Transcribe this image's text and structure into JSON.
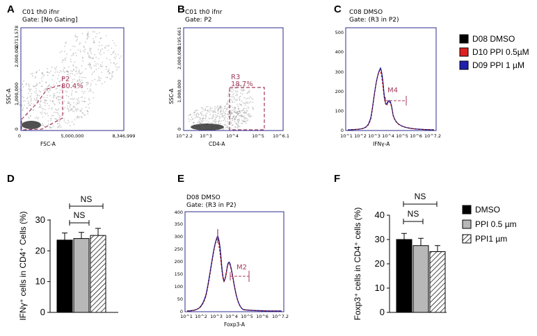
{
  "panel_letters": [
    "A",
    "B",
    "C",
    "D",
    "E",
    "F"
  ],
  "colors": {
    "frame": "#2b2b8f",
    "gate": "#a33a5a",
    "black": "#000000",
    "red": "#e02020",
    "blue": "#1f1fb0",
    "gray": "#b8b8b8"
  },
  "chart_data": [
    {
      "panel": "A",
      "type": "scatter",
      "title_line1": "C01 th0 ifnr",
      "title_line2": "Gate: [No Gating]",
      "xlabel": "FSC-A",
      "ylabel": "SSC-A",
      "x_ticks": [
        "0",
        "5,000,000",
        "8,346,999"
      ],
      "y_ticks": [
        "0",
        "1,000,000",
        "2,000,000",
        "2,713,578"
      ],
      "gate": {
        "name": "P2",
        "percent": "80.4%"
      }
    },
    {
      "panel": "B",
      "type": "scatter",
      "title_line1": "C01 th0 ifnr",
      "title_line2": "Gate: P2",
      "xlabel": "CD4-A",
      "ylabel": "SSC-A",
      "x_ticks": [
        "10^2.2",
        "10^3",
        "10^4",
        "10^5",
        "10^6.1"
      ],
      "y_ticks": [
        "0",
        "1,000,000",
        "2,000,000",
        "3,195,661"
      ],
      "gate": {
        "name": "R3",
        "percent": "18.7%"
      }
    },
    {
      "panel": "C",
      "type": "line",
      "title_line1": "C08 DMSO",
      "title_line2": "Gate: (R3 in P2)",
      "xlabel": "IFNγ-A",
      "ylabel": "",
      "x_ticks": [
        "10^1",
        "10^2",
        "10^3",
        "10^4",
        "10^5",
        "10^6",
        "10^7.2"
      ],
      "y_ticks": [
        "0",
        "100",
        "200",
        "300",
        "400",
        "500"
      ],
      "gate": {
        "name": "M4"
      },
      "legend": [
        "D08 DMSO",
        "D10 PPI 0.5µM",
        "D09 PPI 1 µM"
      ]
    },
    {
      "panel": "D",
      "type": "bar",
      "ylabel": "IFNγ⁺ cells in CD4⁺ Cells (%)",
      "ylim": [
        0,
        30
      ],
      "y_ticks": [
        "0",
        "10",
        "20",
        "30"
      ],
      "categories": [
        "DMSO",
        "PPI 0.5 µm",
        "PPI1 µm"
      ],
      "values": [
        23.5,
        24,
        25
      ],
      "errors": [
        2.3,
        2.0,
        2.3
      ],
      "significance": [
        "NS",
        "NS"
      ]
    },
    {
      "panel": "E",
      "type": "line",
      "title_line1": "D08 DMSO",
      "title_line2": "Gate: (R3 in P2)",
      "xlabel": "Foxp3-A",
      "ylabel": "",
      "x_ticks": [
        "10^1",
        "10^2",
        "10^3",
        "10^4",
        "10^5",
        "10^6",
        "10^7.2"
      ],
      "y_ticks": [
        "0",
        "50",
        "100",
        "150",
        "200",
        "250",
        "300",
        "350",
        "400"
      ],
      "gate": {
        "name": "M2"
      }
    },
    {
      "panel": "F",
      "type": "bar",
      "ylabel": "Foxp3⁺ cells in CD4⁺ cells (%)",
      "ylim": [
        0,
        40
      ],
      "y_ticks": [
        "0",
        "10",
        "20",
        "30",
        "40"
      ],
      "categories": [
        "DMSO",
        "PPI 0.5 µm",
        "PPI1 µm"
      ],
      "values": [
        30,
        27.5,
        25
      ],
      "errors": [
        2.5,
        3.0,
        2.5
      ],
      "significance": [
        "NS",
        "NS"
      ],
      "legend": [
        "DMSO",
        "PPI 0.5 µm",
        "PPI1 µm"
      ]
    }
  ]
}
